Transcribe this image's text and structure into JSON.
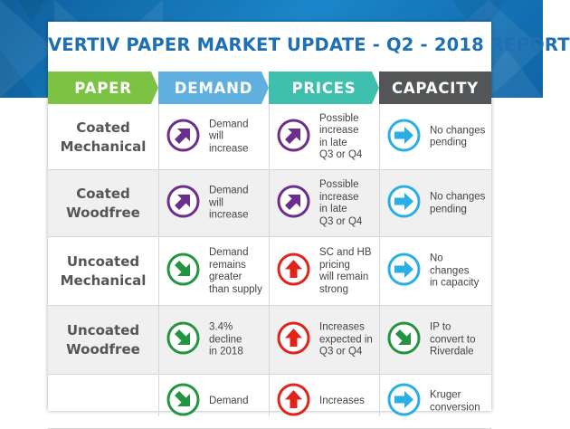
{
  "title": "VERTIV PAPER MARKET UPDATE - Q2 - 2018 REPORT",
  "headers": {
    "paper": "PAPER",
    "demand": "DEMAND",
    "prices": "PRICES",
    "capacity": "CAPACITY"
  },
  "colors": {
    "paper_header": "#7cc243",
    "demand_header": "#5fb0de",
    "prices_header": "#3fbfae",
    "capacity_header": "#535556",
    "up_purple": "#6b2e8c",
    "down_green": "#23953f",
    "up_red": "#e2231a",
    "right_blue": "#29aee6",
    "title_blue": "#1f6fb3"
  },
  "rows": [
    {
      "paper": "Coated\nMechanical",
      "demand": {
        "icon": "arrow-up-right-purple-icon",
        "text": "Demand\nwill\nincrease"
      },
      "prices": {
        "icon": "arrow-up-right-purple-icon",
        "text": "Possible\nincrease\nin late\nQ3 or Q4"
      },
      "capacity": {
        "icon": "arrow-right-blue-icon",
        "text": "No changes\npending"
      }
    },
    {
      "paper": "Coated\nWoodfree",
      "demand": {
        "icon": "arrow-up-right-purple-icon",
        "text": "Demand\nwill\nincrease"
      },
      "prices": {
        "icon": "arrow-up-right-purple-icon",
        "text": "Possible\nincrease\nin late\nQ3 or Q4"
      },
      "capacity": {
        "icon": "arrow-right-blue-icon",
        "text": "No changes\npending"
      }
    },
    {
      "paper": "Uncoated\nMechanical",
      "demand": {
        "icon": "arrow-down-right-green-icon",
        "text": "Demand\nremains\ngreater\nthan supply"
      },
      "prices": {
        "icon": "arrow-up-red-icon",
        "text": "SC and HB\npricing\nwill remain\nstrong"
      },
      "capacity": {
        "icon": "arrow-right-blue-icon",
        "text": "No\nchanges\nin capacity"
      }
    },
    {
      "paper": "Uncoated\nWoodfree",
      "demand": {
        "icon": "arrow-down-right-green-icon",
        "text": "3.4%\ndecline\nin 2018"
      },
      "prices": {
        "icon": "arrow-up-red-icon",
        "text": "Increases\nexpected in\nQ3 or Q4"
      },
      "capacity": {
        "icon": "arrow-down-right-green-icon",
        "text": "IP to\nconvert to\nRiverdale"
      }
    },
    {
      "paper": "",
      "demand": {
        "icon": "arrow-down-right-green-icon",
        "text": "Demand"
      },
      "prices": {
        "icon": "arrow-up-red-icon",
        "text": "Increases"
      },
      "capacity": {
        "icon": "arrow-right-blue-icon",
        "text": "Kruger\nconversion"
      }
    }
  ]
}
